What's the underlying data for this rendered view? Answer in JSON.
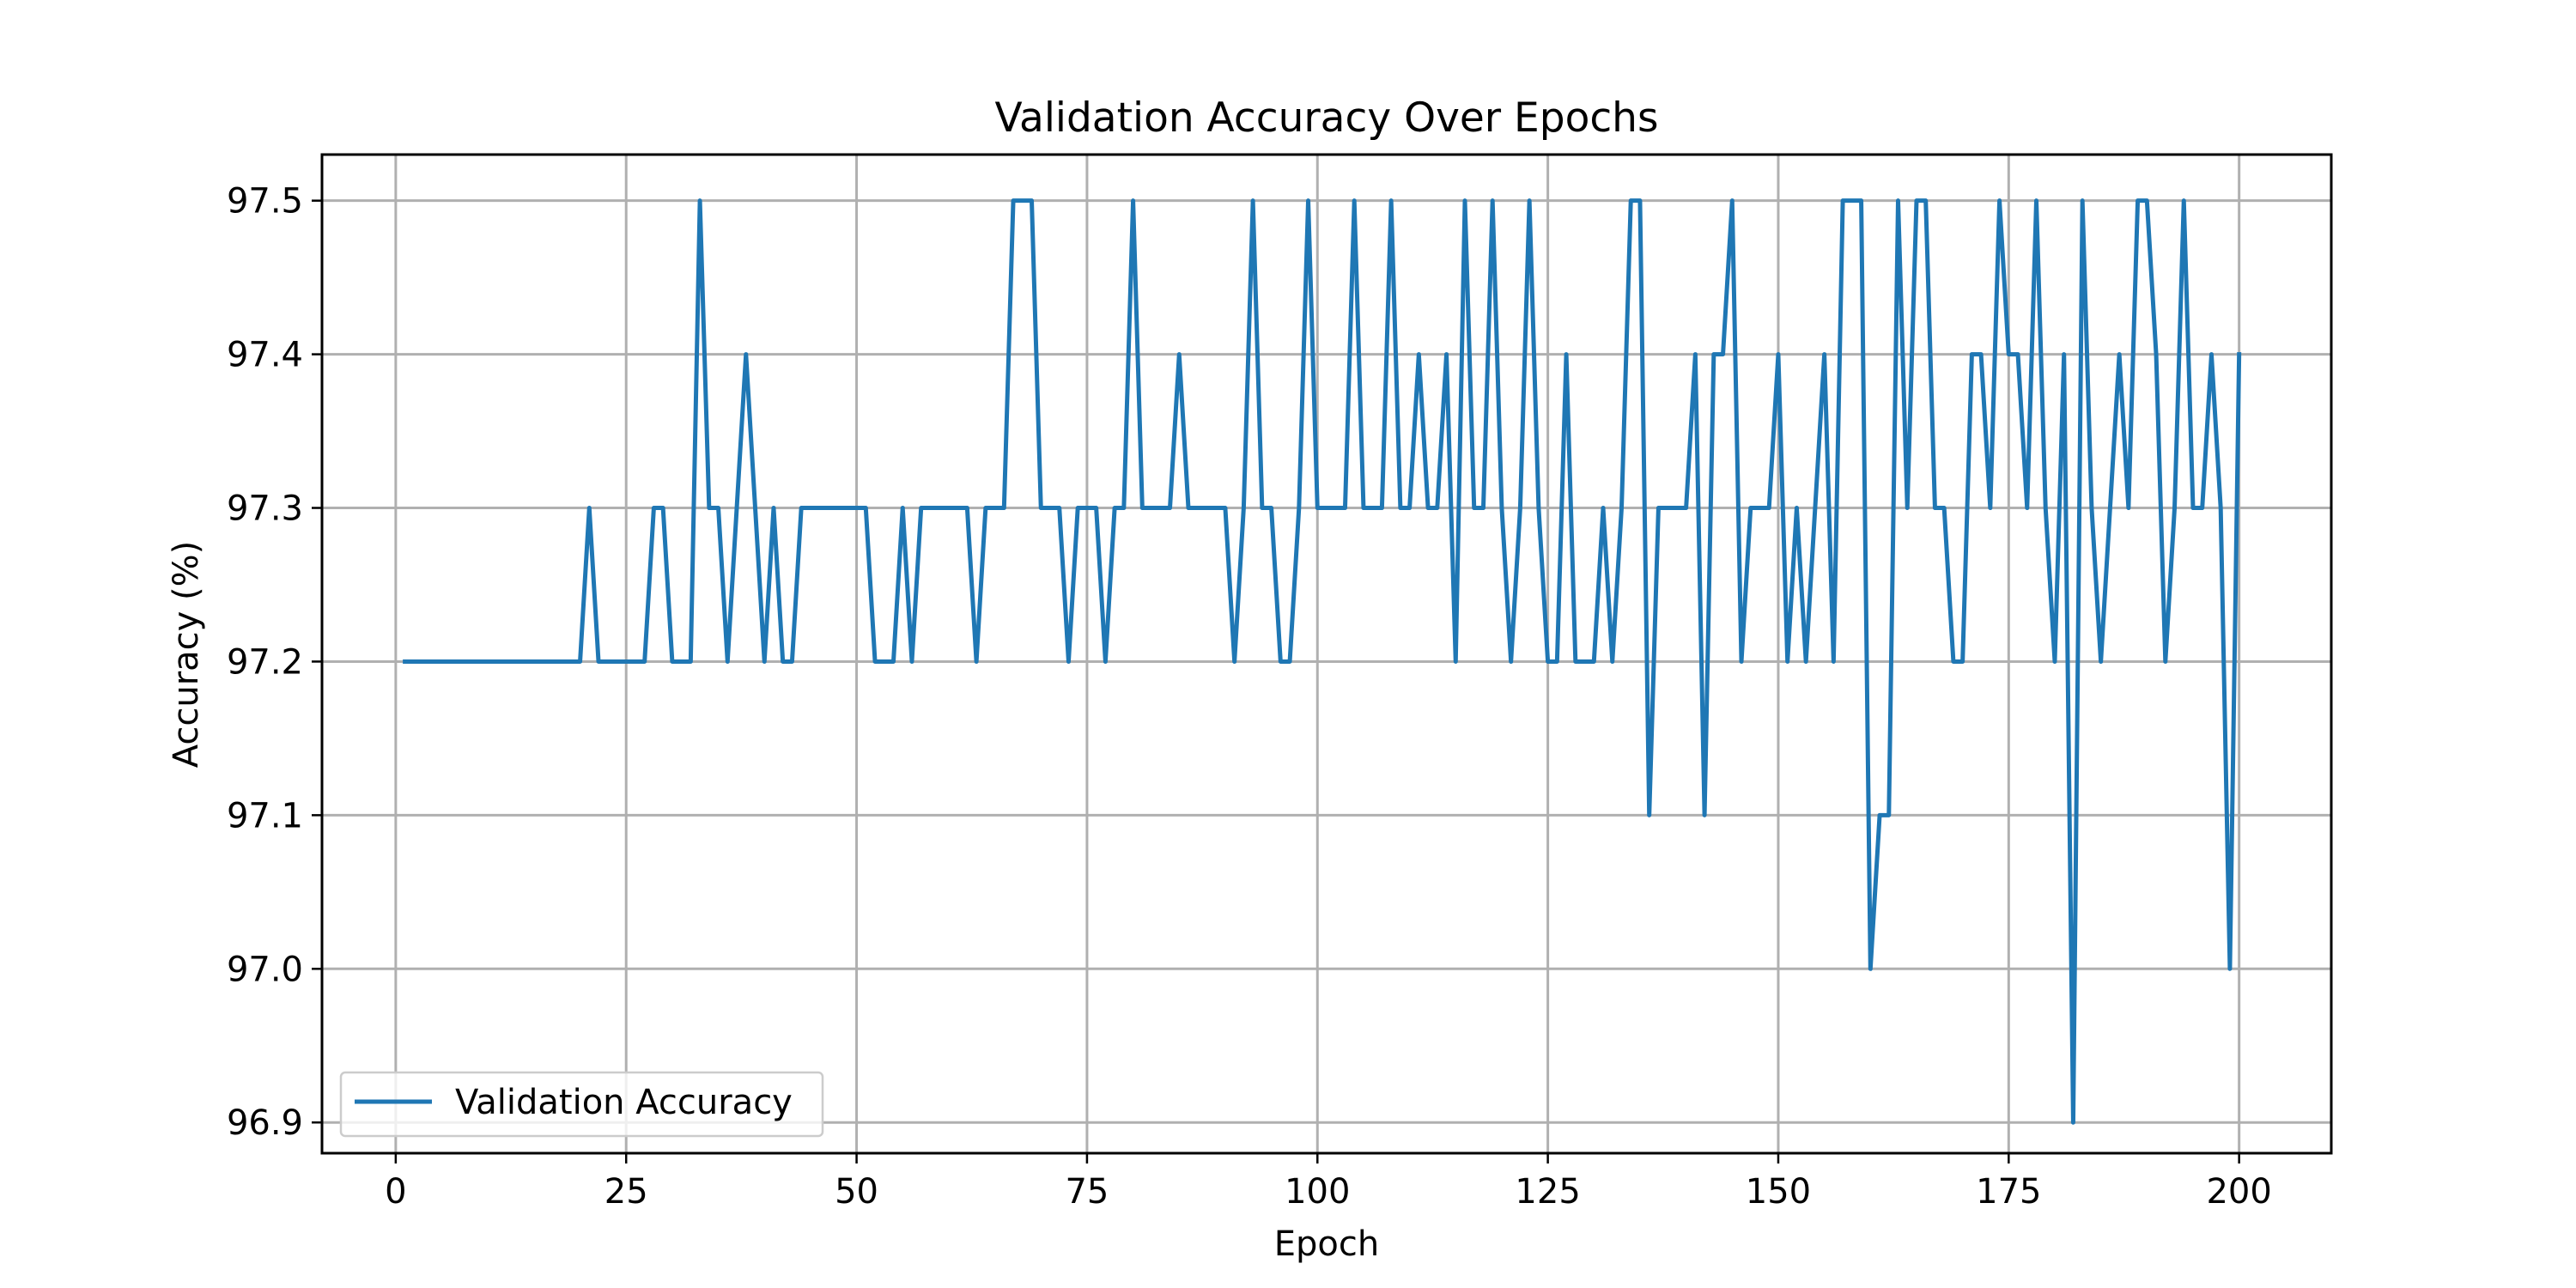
{
  "chart_data": {
    "type": "line",
    "title": "Validation Accuracy Over Epochs",
    "xlabel": "Epoch",
    "ylabel": "Accuracy (%)",
    "xlim": [
      -8,
      210
    ],
    "ylim": [
      96.88,
      97.53
    ],
    "xticks": [
      0,
      25,
      50,
      75,
      100,
      125,
      150,
      175,
      200
    ],
    "xtick_labels": [
      "0",
      "25",
      "50",
      "75",
      "100",
      "125",
      "150",
      "175",
      "200"
    ],
    "yticks": [
      96.9,
      97.0,
      97.1,
      97.2,
      97.3,
      97.4,
      97.5
    ],
    "ytick_labels": [
      "96.9",
      "97.0",
      "97.1",
      "97.2",
      "97.3",
      "97.4",
      "97.5"
    ],
    "grid": true,
    "legend_position": "lower-left",
    "series": [
      {
        "name": "Validation Accuracy",
        "color": "#1f77b4",
        "x_start": 1,
        "values": [
          97.2,
          97.2,
          97.2,
          97.2,
          97.2,
          97.2,
          97.2,
          97.2,
          97.2,
          97.2,
          97.2,
          97.2,
          97.2,
          97.2,
          97.2,
          97.2,
          97.2,
          97.2,
          97.2,
          97.2,
          97.3,
          97.2,
          97.2,
          97.2,
          97.2,
          97.2,
          97.2,
          97.3,
          97.3,
          97.2,
          97.2,
          97.2,
          97.5,
          97.3,
          97.3,
          97.2,
          97.3,
          97.4,
          97.3,
          97.2,
          97.3,
          97.2,
          97.2,
          97.3,
          97.3,
          97.3,
          97.3,
          97.3,
          97.3,
          97.3,
          97.3,
          97.2,
          97.2,
          97.2,
          97.3,
          97.2,
          97.3,
          97.3,
          97.3,
          97.3,
          97.3,
          97.3,
          97.2,
          97.3,
          97.3,
          97.3,
          97.5,
          97.5,
          97.5,
          97.3,
          97.3,
          97.3,
          97.2,
          97.3,
          97.3,
          97.3,
          97.2,
          97.3,
          97.3,
          97.5,
          97.3,
          97.3,
          97.3,
          97.3,
          97.4,
          97.3,
          97.3,
          97.3,
          97.3,
          97.3,
          97.2,
          97.3,
          97.5,
          97.3,
          97.3,
          97.2,
          97.2,
          97.3,
          97.5,
          97.3,
          97.3,
          97.3,
          97.3,
          97.5,
          97.3,
          97.3,
          97.3,
          97.5,
          97.3,
          97.3,
          97.4,
          97.3,
          97.3,
          97.4,
          97.2,
          97.5,
          97.3,
          97.3,
          97.5,
          97.3,
          97.2,
          97.3,
          97.5,
          97.3,
          97.2,
          97.2,
          97.4,
          97.2,
          97.2,
          97.2,
          97.3,
          97.2,
          97.3,
          97.5,
          97.5,
          97.1,
          97.3,
          97.3,
          97.3,
          97.3,
          97.4,
          97.1,
          97.4,
          97.4,
          97.5,
          97.2,
          97.3,
          97.3,
          97.3,
          97.4,
          97.2,
          97.3,
          97.2,
          97.3,
          97.4,
          97.2,
          97.5,
          97.5,
          97.5,
          97.0,
          97.1,
          97.1,
          97.5,
          97.3,
          97.5,
          97.5,
          97.3,
          97.3,
          97.2,
          97.2,
          97.4,
          97.4,
          97.3,
          97.5,
          97.4,
          97.4,
          97.3,
          97.5,
          97.3,
          97.2,
          97.4,
          96.9,
          97.5,
          97.3,
          97.2,
          97.3,
          97.4,
          97.3,
          97.5,
          97.5,
          97.4,
          97.2,
          97.3,
          97.5,
          97.3,
          97.3,
          97.4,
          97.3,
          97.0,
          97.4
        ]
      }
    ]
  }
}
